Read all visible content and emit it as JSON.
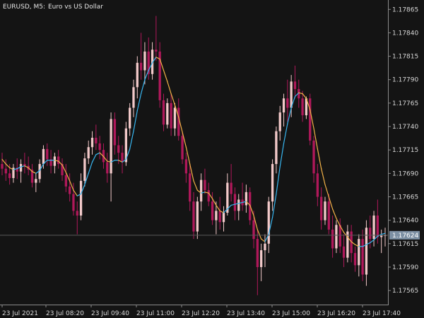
{
  "header": {
    "symbol": "EURUSD, M5:",
    "description": "Euro vs US Dollar"
  },
  "colors": {
    "background": "#141414",
    "axis": "#8a8a8a",
    "bull_candle": "#f2c9c9",
    "bear_candle": "#b0185a",
    "rising_line": "#38b6f0",
    "falling_line": "#f2b248",
    "current_price_bg": "#7c8fa3"
  },
  "chart_data": {
    "type": "candlestick",
    "symbol": "EURUSD",
    "timeframe": "M5",
    "ylim": [
      1.1755,
      1.17875
    ],
    "y_ticks": [
      "1.17865",
      "1.17840",
      "1.17815",
      "1.17790",
      "1.17765",
      "1.17740",
      "1.17715",
      "1.17690",
      "1.17665",
      "1.17640",
      "1.17615",
      "1.17590",
      "1.17565"
    ],
    "x_ticks": [
      "23 Jul 2021",
      "23 Jul 08:20",
      "23 Jul 09:40",
      "23 Jul 11:00",
      "23 Jul 12:20",
      "23 Jul 13:40",
      "23 Jul 15:00",
      "23 Jul 16:20",
      "23 Jul 17:40"
    ],
    "current_price": "1.17624",
    "current_price_value": 1.17624,
    "candles_ohlc": [
      [
        1.177,
        1.17712,
        1.17688,
        1.17695
      ],
      [
        1.17695,
        1.17705,
        1.17682,
        1.1769
      ],
      [
        1.1769,
        1.177,
        1.17678,
        1.17685
      ],
      [
        1.17685,
        1.177,
        1.1768,
        1.17696
      ],
      [
        1.17696,
        1.17706,
        1.17684,
        1.17692
      ],
      [
        1.17692,
        1.17705,
        1.1768,
        1.177
      ],
      [
        1.177,
        1.17712,
        1.1769,
        1.17698
      ],
      [
        1.17698,
        1.17708,
        1.17688,
        1.17694
      ],
      [
        1.17694,
        1.177,
        1.17675,
        1.1768
      ],
      [
        1.1768,
        1.1769,
        1.1767,
        1.17684
      ],
      [
        1.17684,
        1.17705,
        1.1768,
        1.177
      ],
      [
        1.177,
        1.1772,
        1.17695,
        1.17716
      ],
      [
        1.17716,
        1.17722,
        1.17698,
        1.17705
      ],
      [
        1.17705,
        1.17715,
        1.1769,
        1.17698
      ],
      [
        1.17698,
        1.17712,
        1.1769,
        1.17708
      ],
      [
        1.17708,
        1.17715,
        1.17695,
        1.177
      ],
      [
        1.177,
        1.17706,
        1.17682,
        1.17688
      ],
      [
        1.17688,
        1.177,
        1.1767,
        1.17676
      ],
      [
        1.17676,
        1.1769,
        1.1766,
        1.17668
      ],
      [
        1.17668,
        1.1768,
        1.17645,
        1.1765
      ],
      [
        1.1765,
        1.1766,
        1.17625,
        1.17645
      ],
      [
        1.17645,
        1.1769,
        1.1764,
        1.17682
      ],
      [
        1.17682,
        1.17712,
        1.17676,
        1.17706
      ],
      [
        1.17706,
        1.17725,
        1.177,
        1.17718
      ],
      [
        1.17718,
        1.17735,
        1.1771,
        1.17728
      ],
      [
        1.17728,
        1.17742,
        1.17715,
        1.17722
      ],
      [
        1.17722,
        1.1773,
        1.17705,
        1.17715
      ],
      [
        1.17715,
        1.17722,
        1.17695,
        1.17702
      ],
      [
        1.17702,
        1.17712,
        1.1768,
        1.1769
      ],
      [
        1.1769,
        1.17755,
        1.1766,
        1.17748
      ],
      [
        1.17748,
        1.17755,
        1.1771,
        1.1772
      ],
      [
        1.1772,
        1.1773,
        1.177,
        1.17712
      ],
      [
        1.17712,
        1.1772,
        1.1769,
        1.17702
      ],
      [
        1.17702,
        1.17745,
        1.17698,
        1.17738
      ],
      [
        1.17738,
        1.17765,
        1.1773,
        1.1776
      ],
      [
        1.1776,
        1.1779,
        1.1775,
        1.17782
      ],
      [
        1.17782,
        1.17815,
        1.1777,
        1.17808
      ],
      [
        1.17808,
        1.1784,
        1.1779,
        1.178
      ],
      [
        1.178,
        1.1783,
        1.17785,
        1.1782
      ],
      [
        1.1782,
        1.17835,
        1.1779,
        1.17796
      ],
      [
        1.17796,
        1.1783,
        1.1779,
        1.17822
      ],
      [
        1.17822,
        1.17858,
        1.1781,
        1.1782
      ],
      [
        1.1782,
        1.1783,
        1.1776,
        1.17768
      ],
      [
        1.17768,
        1.17775,
        1.17735,
        1.17742
      ],
      [
        1.17742,
        1.1777,
        1.17738,
        1.17765
      ],
      [
        1.17765,
        1.17775,
        1.1773,
        1.17738
      ],
      [
        1.17738,
        1.17765,
        1.1773,
        1.1776
      ],
      [
        1.1776,
        1.1777,
        1.17725,
        1.1773
      ],
      [
        1.1773,
        1.17735,
        1.177,
        1.17705
      ],
      [
        1.17705,
        1.17712,
        1.1768,
        1.1769
      ],
      [
        1.1769,
        1.177,
        1.1765,
        1.1766
      ],
      [
        1.1766,
        1.1767,
        1.1762,
        1.17628
      ],
      [
        1.17628,
        1.17665,
        1.1762,
        1.1766
      ],
      [
        1.1766,
        1.1769,
        1.1765,
        1.17683
      ],
      [
        1.17683,
        1.17695,
        1.17668,
        1.17672
      ],
      [
        1.17672,
        1.1768,
        1.17655,
        1.1766
      ],
      [
        1.1766,
        1.1767,
        1.17635,
        1.1764
      ],
      [
        1.1764,
        1.1766,
        1.17625,
        1.1765
      ],
      [
        1.1765,
        1.17665,
        1.1763,
        1.17638
      ],
      [
        1.17638,
        1.17655,
        1.17628,
        1.17648
      ],
      [
        1.17648,
        1.1769,
        1.17645,
        1.1768
      ],
      [
        1.1768,
        1.177,
        1.1766,
        1.17668
      ],
      [
        1.17668,
        1.17675,
        1.1764,
        1.1765
      ],
      [
        1.1765,
        1.17668,
        1.1764,
        1.17662
      ],
      [
        1.17662,
        1.1768,
        1.1765,
        1.17656
      ],
      [
        1.17656,
        1.17678,
        1.17648,
        1.1767
      ],
      [
        1.1767,
        1.17675,
        1.17635,
        1.1764
      ],
      [
        1.1764,
        1.1765,
        1.1761,
        1.1762
      ],
      [
        1.1762,
        1.1763,
        1.1756,
        1.1759
      ],
      [
        1.1759,
        1.17615,
        1.17575,
        1.17608
      ],
      [
        1.17608,
        1.17625,
        1.1759,
        1.17615
      ],
      [
        1.17615,
        1.17665,
        1.17605,
        1.1766
      ],
      [
        1.1766,
        1.17705,
        1.1765,
        1.177
      ],
      [
        1.177,
        1.1774,
        1.1769,
        1.17735
      ],
      [
        1.17735,
        1.17762,
        1.17725,
        1.17755
      ],
      [
        1.17755,
        1.17775,
        1.1774,
        1.1777
      ],
      [
        1.1777,
        1.1779,
        1.17745,
        1.1776
      ],
      [
        1.1776,
        1.17795,
        1.1775,
        1.17788
      ],
      [
        1.17788,
        1.17805,
        1.1777,
        1.1778
      ],
      [
        1.1778,
        1.1779,
        1.1776,
        1.1777
      ],
      [
        1.1777,
        1.17778,
        1.17745,
        1.17752
      ],
      [
        1.17752,
        1.17772,
        1.17748,
        1.1777
      ],
      [
        1.1777,
        1.17775,
        1.1772,
        1.17725
      ],
      [
        1.17725,
        1.1773,
        1.1768,
        1.1769
      ],
      [
        1.1769,
        1.177,
        1.17655,
        1.17665
      ],
      [
        1.17665,
        1.17675,
        1.1763,
        1.1764
      ],
      [
        1.1764,
        1.17665,
        1.17635,
        1.1766
      ],
      [
        1.1766,
        1.17668,
        1.17625,
        1.1763
      ],
      [
        1.1763,
        1.17645,
        1.176,
        1.1761
      ],
      [
        1.1761,
        1.1764,
        1.17605,
        1.17635
      ],
      [
        1.17635,
        1.17642,
        1.17605,
        1.17612
      ],
      [
        1.17612,
        1.17625,
        1.1759,
        1.176
      ],
      [
        1.176,
        1.17635,
        1.17595,
        1.17628
      ],
      [
        1.17628,
        1.17635,
        1.17595,
        1.17605
      ],
      [
        1.17605,
        1.17612,
        1.17585,
        1.17592
      ],
      [
        1.17592,
        1.17625,
        1.1758,
        1.1762
      ],
      [
        1.1762,
        1.1763,
        1.17575,
        1.17582
      ],
      [
        1.17582,
        1.1764,
        1.1757,
        1.17632
      ],
      [
        1.17632,
        1.17645,
        1.1761,
        1.1762
      ],
      [
        1.1762,
        1.1765,
        1.17612,
        1.17645
      ],
      [
        1.17645,
        1.17662,
        1.17615,
        1.17622
      ],
      [
        1.17622,
        1.1763,
        1.17605,
        1.17624
      ],
      [
        1.17624,
        1.17632,
        1.17612,
        1.17624
      ]
    ],
    "ma_line": [
      1.17705,
      1.177,
      1.17696,
      1.17694,
      1.17695,
      1.17697,
      1.17698,
      1.17696,
      1.17692,
      1.1769,
      1.17693,
      1.177,
      1.17704,
      1.17704,
      1.17704,
      1.17703,
      1.17699,
      1.17691,
      1.17682,
      1.17672,
      1.17666,
      1.17668,
      1.17678,
      1.1769,
      1.17702,
      1.1771,
      1.17712,
      1.17708,
      1.17703,
      1.17702,
      1.17704,
      1.17704,
      1.17702,
      1.17705,
      1.17716,
      1.17735,
      1.17757,
      1.17775,
      1.1779,
      1.178,
      1.17808,
      1.17814,
      1.17812,
      1.178,
      1.17788,
      1.17775,
      1.17763,
      1.1775,
      1.17734,
      1.17718,
      1.177,
      1.17682,
      1.17672,
      1.17669,
      1.1767,
      1.17669,
      1.17663,
      1.17656,
      1.1765,
      1.17648,
      1.17652,
      1.17656,
      1.17657,
      1.17658,
      1.17659,
      1.1766,
      1.17656,
      1.17645,
      1.1763,
      1.1762,
      1.17617,
      1.17625,
      1.17643,
      1.17668,
      1.17697,
      1.17722,
      1.17743,
      1.1776,
      1.17772,
      1.17776,
      1.17775,
      1.1777,
      1.17758,
      1.17738,
      1.17716,
      1.17695,
      1.17678,
      1.17665,
      1.17652,
      1.17642,
      1.17634,
      1.17627,
      1.17622,
      1.17617,
      1.17614,
      1.17612,
      1.17612,
      1.17614,
      1.17616,
      1.17619,
      1.17623,
      1.17625,
      1.17626
    ]
  }
}
